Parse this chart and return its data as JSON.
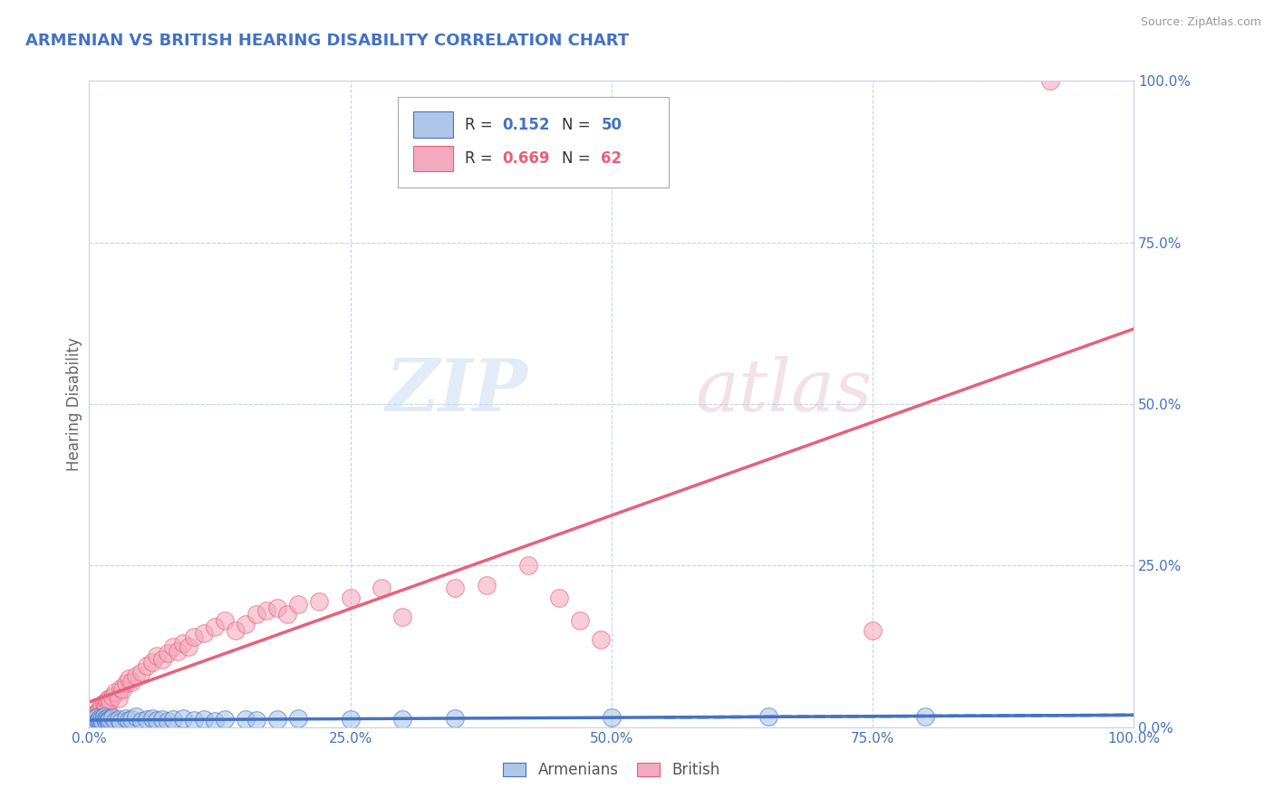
{
  "title": "ARMENIAN VS BRITISH HEARING DISABILITY CORRELATION CHART",
  "source": "Source: ZipAtlas.com",
  "ylabel": "Hearing Disability",
  "xlim": [
    0.0,
    1.0
  ],
  "ylim": [
    0.0,
    1.0
  ],
  "x_tick_labels": [
    "0.0%",
    "25.0%",
    "50.0%",
    "75.0%",
    "100.0%"
  ],
  "x_tick_vals": [
    0.0,
    0.25,
    0.5,
    0.75,
    1.0
  ],
  "y_tick_labels": [
    "0.0%",
    "25.0%",
    "50.0%",
    "75.0%",
    "100.0%"
  ],
  "y_tick_vals": [
    0.0,
    0.25,
    0.5,
    0.75,
    1.0
  ],
  "armenian_R": 0.152,
  "armenian_N": 50,
  "british_R": 0.669,
  "british_N": 62,
  "armenian_color": "#aec6e8",
  "british_color": "#f4aabe",
  "armenian_line_color": "#4472c4",
  "british_line_color": "#e8607a",
  "background_color": "#ffffff",
  "grid_color": "#c8d4e8",
  "title_color": "#4472c4",
  "armenian_scatter_x": [
    0.001,
    0.002,
    0.003,
    0.004,
    0.005,
    0.006,
    0.007,
    0.008,
    0.009,
    0.01,
    0.011,
    0.012,
    0.013,
    0.014,
    0.015,
    0.016,
    0.017,
    0.018,
    0.019,
    0.02,
    0.022,
    0.025,
    0.028,
    0.03,
    0.035,
    0.038,
    0.04,
    0.045,
    0.05,
    0.055,
    0.06,
    0.065,
    0.07,
    0.075,
    0.08,
    0.09,
    0.1,
    0.11,
    0.12,
    0.13,
    0.15,
    0.16,
    0.18,
    0.2,
    0.25,
    0.3,
    0.35,
    0.5,
    0.65,
    0.8
  ],
  "armenian_scatter_y": [
    0.005,
    0.008,
    0.01,
    0.006,
    0.012,
    0.007,
    0.015,
    0.009,
    0.011,
    0.014,
    0.01,
    0.013,
    0.008,
    0.016,
    0.012,
    0.01,
    0.014,
    0.011,
    0.009,
    0.013,
    0.015,
    0.01,
    0.012,
    0.008,
    0.014,
    0.011,
    0.013,
    0.016,
    0.01,
    0.012,
    0.014,
    0.011,
    0.013,
    0.009,
    0.012,
    0.014,
    0.011,
    0.013,
    0.01,
    0.012,
    0.013,
    0.011,
    0.012,
    0.014,
    0.013,
    0.012,
    0.014,
    0.015,
    0.016,
    0.017
  ],
  "british_scatter_x": [
    0.001,
    0.002,
    0.003,
    0.004,
    0.005,
    0.006,
    0.007,
    0.008,
    0.009,
    0.01,
    0.011,
    0.012,
    0.013,
    0.014,
    0.015,
    0.016,
    0.017,
    0.018,
    0.019,
    0.02,
    0.022,
    0.025,
    0.028,
    0.03,
    0.032,
    0.035,
    0.038,
    0.04,
    0.045,
    0.05,
    0.055,
    0.06,
    0.065,
    0.07,
    0.075,
    0.08,
    0.085,
    0.09,
    0.095,
    0.1,
    0.11,
    0.12,
    0.13,
    0.14,
    0.15,
    0.16,
    0.17,
    0.18,
    0.19,
    0.2,
    0.22,
    0.25,
    0.28,
    0.3,
    0.35,
    0.38,
    0.42,
    0.45,
    0.47,
    0.49,
    0.75,
    0.92
  ],
  "british_scatter_y": [
    0.01,
    0.015,
    0.012,
    0.018,
    0.02,
    0.016,
    0.022,
    0.025,
    0.018,
    0.03,
    0.028,
    0.035,
    0.022,
    0.038,
    0.032,
    0.03,
    0.042,
    0.028,
    0.045,
    0.04,
    0.048,
    0.055,
    0.045,
    0.06,
    0.058,
    0.068,
    0.075,
    0.07,
    0.08,
    0.085,
    0.095,
    0.1,
    0.11,
    0.105,
    0.115,
    0.125,
    0.118,
    0.13,
    0.125,
    0.14,
    0.145,
    0.155,
    0.165,
    0.15,
    0.16,
    0.175,
    0.18,
    0.185,
    0.175,
    0.19,
    0.195,
    0.2,
    0.215,
    0.17,
    0.215,
    0.22,
    0.25,
    0.2,
    0.165,
    0.135,
    0.15,
    1.0
  ]
}
